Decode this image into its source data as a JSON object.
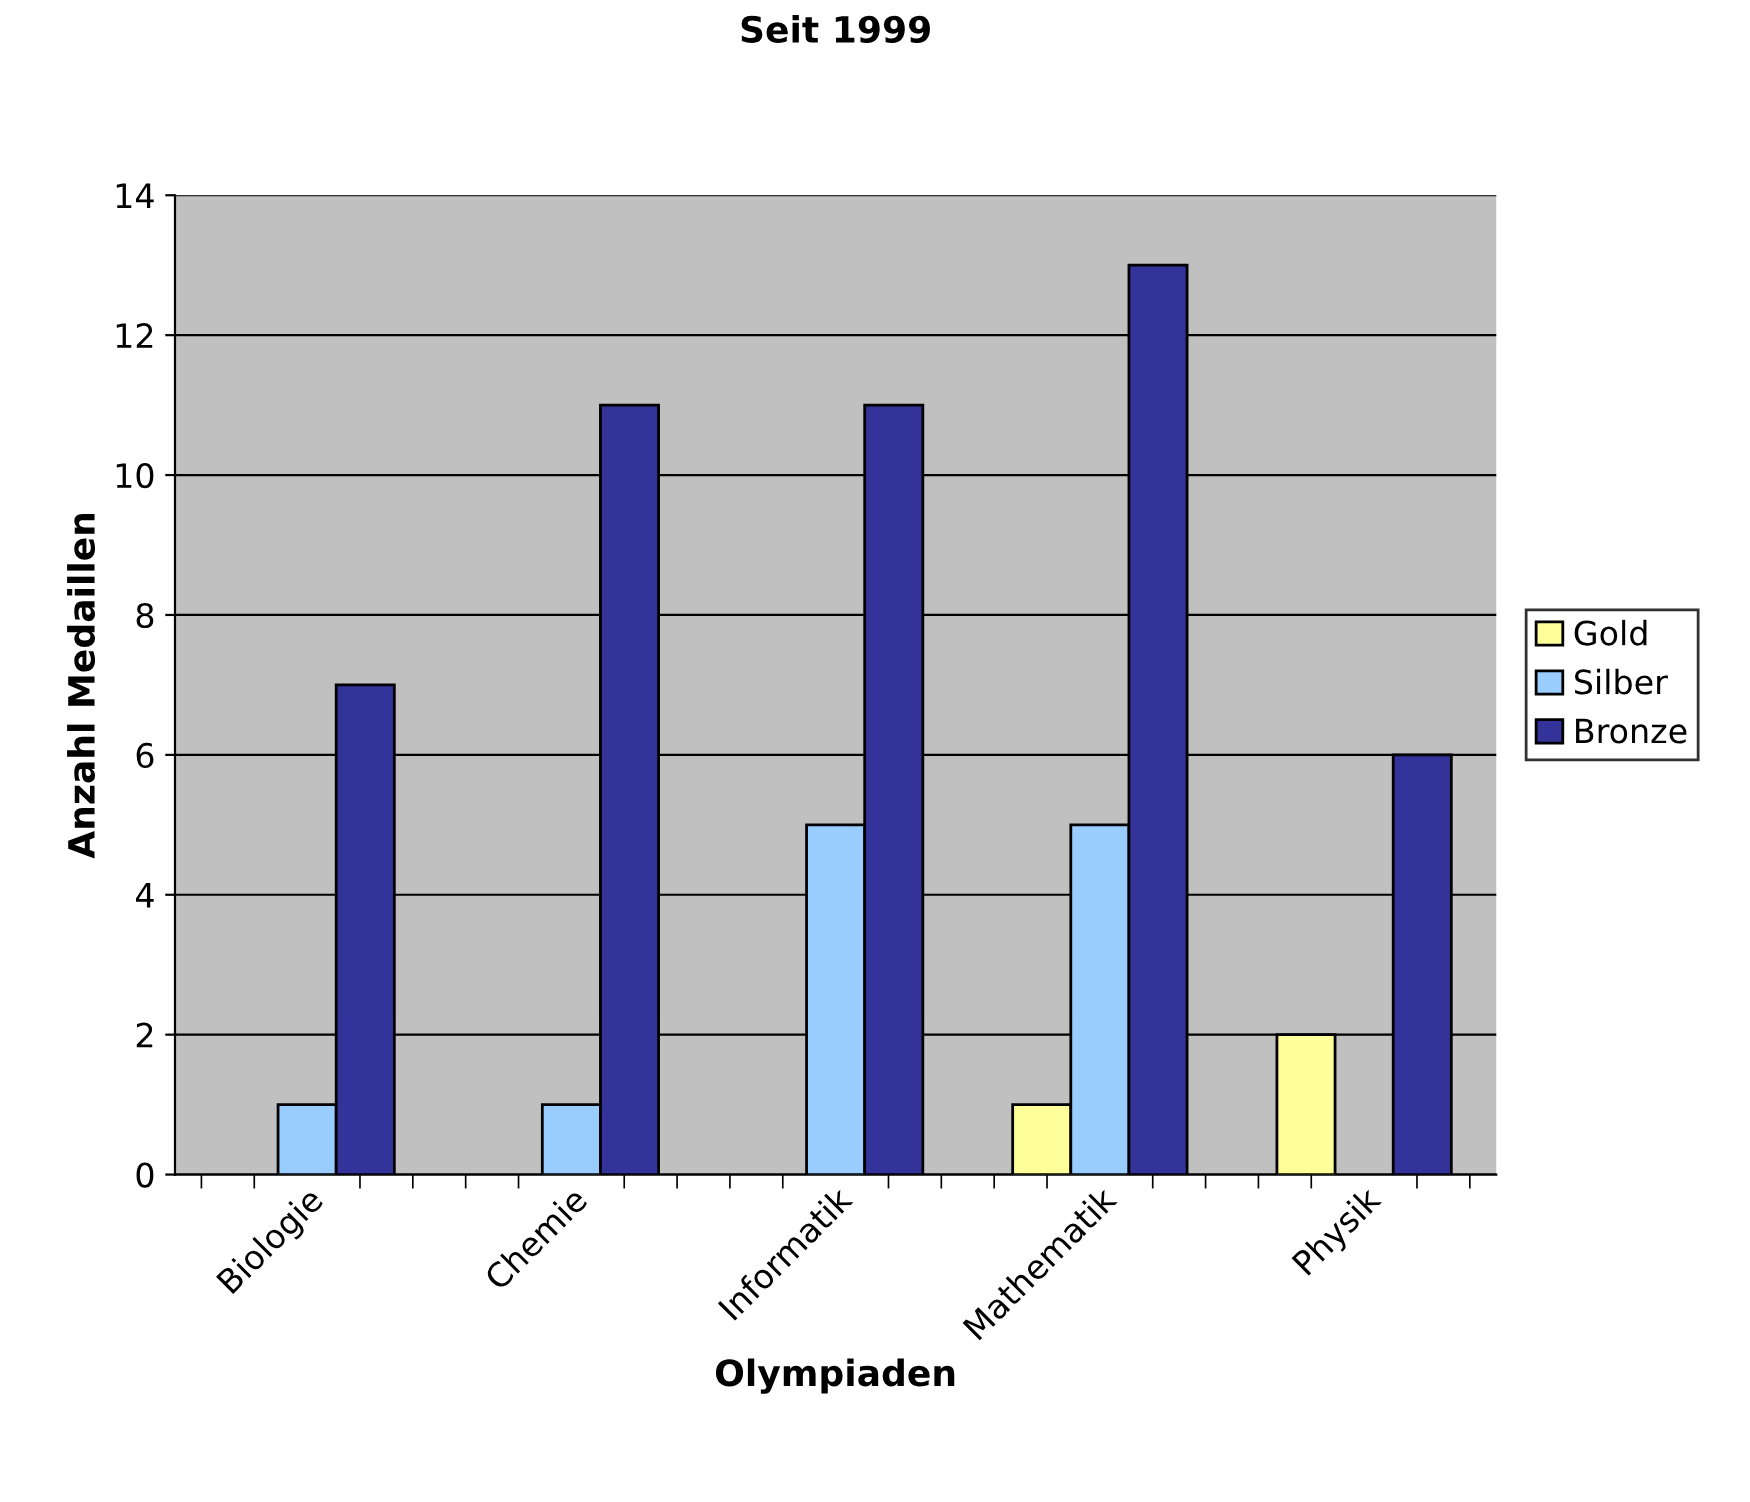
{
  "chart_data": {
    "type": "bar",
    "title": "Seit 1999",
    "xlabel": "Olympiaden",
    "ylabel": "Anzahl Medaillen",
    "categories": [
      "Biologie",
      "Chemie",
      "Informatik",
      "Mathematik",
      "Physik"
    ],
    "series": [
      {
        "name": "Gold",
        "color": "#ffff99",
        "values": [
          0,
          0,
          0,
          1,
          2
        ]
      },
      {
        "name": "Silber",
        "color": "#99ccff",
        "values": [
          1,
          1,
          5,
          5,
          0
        ]
      },
      {
        "name": "Bronze",
        "color": "#333399",
        "values": [
          7,
          11,
          11,
          13,
          6
        ]
      }
    ],
    "ylim": [
      0,
      14
    ],
    "yticks": [
      0,
      2,
      4,
      6,
      8,
      10,
      12,
      14
    ],
    "grid": "y",
    "legend": "right"
  }
}
